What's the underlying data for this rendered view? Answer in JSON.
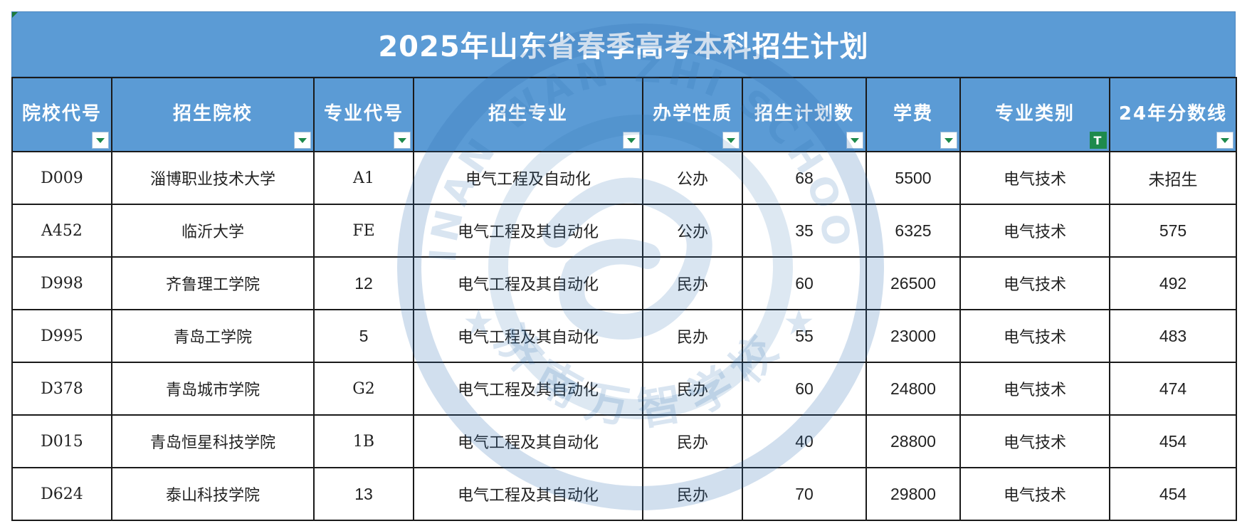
{
  "title": "2025年山东省春季高考本科招生计划",
  "watermark": {
    "text_top": "JINAN WAN ZHI SCHOOL",
    "text_bottom": "济南万智学校"
  },
  "colors": {
    "header_bg": "#5b9bd5",
    "header_text": "#ffffff",
    "filter_active": "#1e8a4c",
    "border": "#1a1a1a"
  },
  "columns": [
    {
      "label": "院校代号",
      "filter": "dropdown"
    },
    {
      "label": "招生院校",
      "filter": "dropdown"
    },
    {
      "label": "专业代号",
      "filter": "dropdown"
    },
    {
      "label": "招生专业",
      "filter": "dropdown"
    },
    {
      "label": "办学性质",
      "filter": "dropdown"
    },
    {
      "label": "招生计划数",
      "filter": "dropdown"
    },
    {
      "label": "学费",
      "filter": "dropdown"
    },
    {
      "label": "专业类别",
      "filter": "active-filter"
    },
    {
      "label": "24年分数线",
      "filter": "dropdown"
    }
  ],
  "rows": [
    [
      "D009",
      "淄博职业技术大学",
      "A1",
      "电气工程及自动化",
      "公办",
      "68",
      "5500",
      "电气技术",
      "未招生"
    ],
    [
      "A452",
      "临沂大学",
      "FE",
      "电气工程及其自动化",
      "公办",
      "35",
      "6325",
      "电气技术",
      "575"
    ],
    [
      "D998",
      "齐鲁理工学院",
      "12",
      "电气工程及其自动化",
      "民办",
      "60",
      "26500",
      "电气技术",
      "492"
    ],
    [
      "D995",
      "青岛工学院",
      "5",
      "电气工程及其自动化",
      "民办",
      "55",
      "23000",
      "电气技术",
      "483"
    ],
    [
      "D378",
      "青岛城市学院",
      "G2",
      "电气工程及其自动化",
      "民办",
      "60",
      "24800",
      "电气技术",
      "474"
    ],
    [
      "D015",
      "青岛恒星科技学院",
      "1B",
      "电气工程及其自动化",
      "民办",
      "40",
      "28800",
      "电气技术",
      "454"
    ],
    [
      "D624",
      "泰山科技学院",
      "13",
      "电气工程及其自动化",
      "民办",
      "70",
      "29800",
      "电气技术",
      "454"
    ]
  ]
}
